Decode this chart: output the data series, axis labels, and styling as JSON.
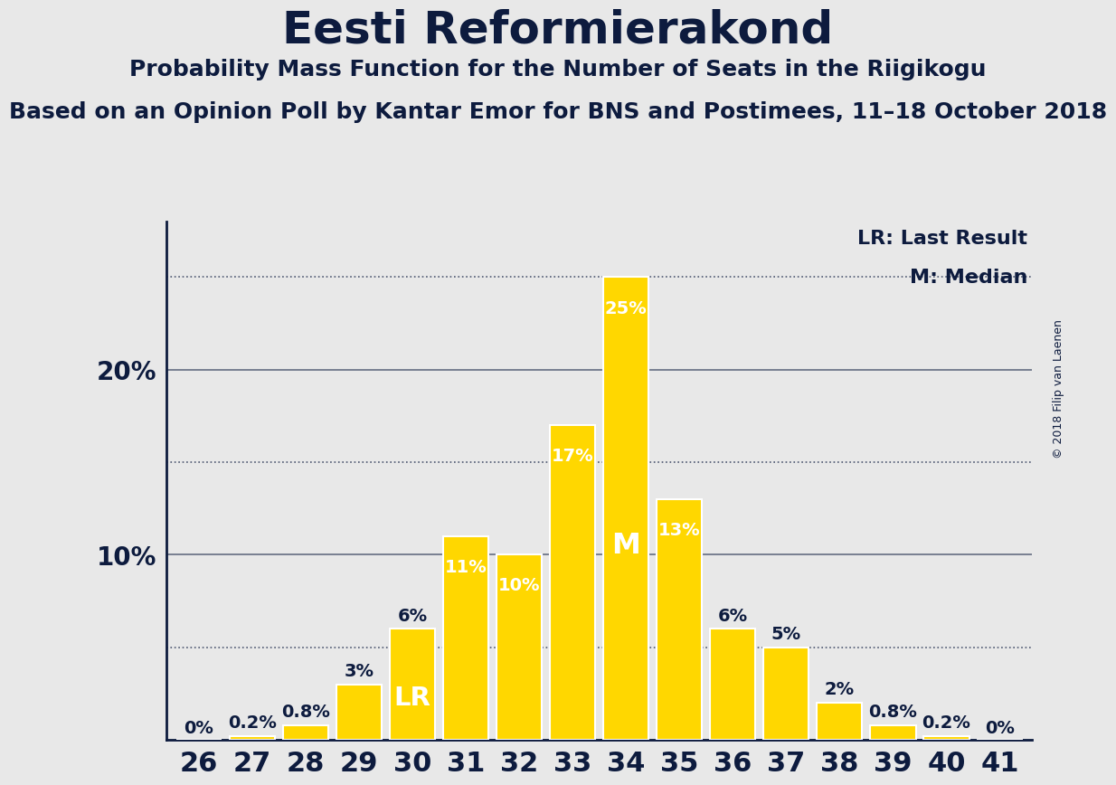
{
  "title": "Eesti Reformierakond",
  "subtitle1": "Probability Mass Function for the Number of Seats in the Riigikogu",
  "subtitle2": "Based on an Opinion Poll by Kantar Emor for BNS and Postimees, 11–18 October 2018",
  "copyright": "© 2018 Filip van Laenen",
  "seats": [
    26,
    27,
    28,
    29,
    30,
    31,
    32,
    33,
    34,
    35,
    36,
    37,
    38,
    39,
    40,
    41
  ],
  "values": [
    0.0,
    0.2,
    0.8,
    3.0,
    6.0,
    11.0,
    10.0,
    17.0,
    25.0,
    13.0,
    6.0,
    5.0,
    2.0,
    0.8,
    0.2,
    0.0
  ],
  "labels": [
    "0%",
    "0.2%",
    "0.8%",
    "3%",
    "6%",
    "11%",
    "10%",
    "17%",
    "25%",
    "13%",
    "6%",
    "5%",
    "2%",
    "0.8%",
    "0.2%",
    "0%"
  ],
  "bar_color": "#FFD700",
  "bar_edge_color": "#FFFFFF",
  "background_color": "#E8E8E8",
  "text_color": "#0D1B3E",
  "lr_seat": 30,
  "median_seat": 34,
  "yticks": [
    10,
    20
  ],
  "ytick_labels": [
    "10%",
    "20%"
  ],
  "dotted_lines": [
    5,
    15,
    25
  ],
  "solid_lines": [
    10,
    20
  ],
  "legend_lr": "LR: Last Result",
  "legend_m": "M: Median",
  "title_fontsize": 36,
  "subtitle1_fontsize": 18,
  "subtitle2_fontsize": 18,
  "bar_label_fontsize": 14,
  "ytick_fontsize": 20,
  "xtick_fontsize": 22,
  "legend_fontsize": 16,
  "copyright_fontsize": 9
}
